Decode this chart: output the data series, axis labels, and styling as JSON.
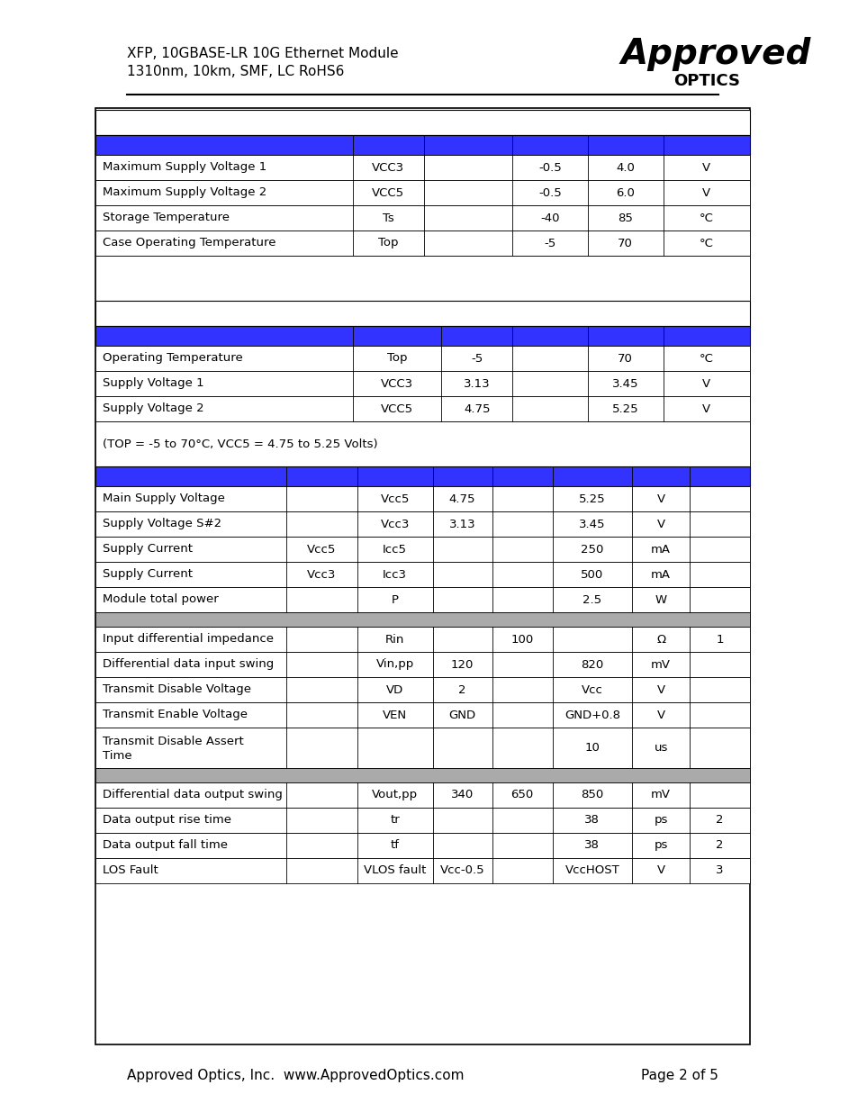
{
  "header_line1": "XFP, 10GBASE-LR 10G Ethernet Module",
  "header_line2": "1310nm, 10km, SMF, LC RoHS6",
  "footer_left": "Approved Optics, Inc.  www.ApprovedOptics.com",
  "footer_right": "Page 2 of 5",
  "blue_color": "#3333FF",
  "gray_color": "#AAAAAA",
  "white_color": "#FFFFFF",
  "black_color": "#000000",
  "section1_header_row": [
    "",
    "",
    "",
    "",
    "",
    ""
  ],
  "section1_rows": [
    [
      "Maximum Supply Voltage 1",
      "VCC3",
      "",
      "-0.5",
      "4.0",
      "V"
    ],
    [
      "Maximum Supply Voltage 2",
      "VCC5",
      "",
      "-0.5",
      "6.0",
      "V"
    ],
    [
      "Storage Temperature",
      "Ts",
      "",
      "-40",
      "85",
      "°C"
    ],
    [
      "Case Operating Temperature",
      "Top",
      "",
      "-5",
      "70",
      "°C"
    ]
  ],
  "section2_header_row": [
    "",
    "",
    "",
    "",
    "",
    ""
  ],
  "section2_rows": [
    [
      "Operating Temperature",
      "Top",
      "-5",
      "",
      "70",
      "°C"
    ],
    [
      "Supply Voltage 1",
      "VCC3",
      "3.13",
      "",
      "3.45",
      "V"
    ],
    [
      "Supply Voltage 2",
      "VCC5",
      "4.75",
      "",
      "5.25",
      "V"
    ]
  ],
  "section2_note": "(TOP = -5 to 70°C, VCC5 = 4.75 to 5.25 Volts)",
  "section3_header_row": [
    "",
    "",
    "",
    "",
    "",
    "",
    ""
  ],
  "section3_rows_a": [
    [
      "Main Supply Voltage",
      "",
      "Vcc5",
      "4.75",
      "",
      "5.25",
      "V",
      ""
    ],
    [
      "Supply Voltage S#2",
      "",
      "Vcc3",
      "3.13",
      "",
      "3.45",
      "V",
      ""
    ],
    [
      "Supply Current",
      "Vcc5",
      "Icc5",
      "",
      "",
      "250",
      "mA",
      ""
    ],
    [
      "Supply Current",
      "Vcc3",
      "Icc3",
      "",
      "",
      "500",
      "mA",
      ""
    ],
    [
      "Module total power",
      "",
      "P",
      "",
      "",
      "2.5",
      "W",
      ""
    ]
  ],
  "section3_rows_b": [
    [
      "Input differential impedance",
      "",
      "Rin",
      "",
      "100",
      "",
      "Ω",
      "1"
    ],
    [
      "Differential data input swing",
      "",
      "Vin,pp",
      "120",
      "",
      "820",
      "mV",
      ""
    ],
    [
      "Transmit Disable Voltage",
      "",
      "VD",
      "2",
      "",
      "Vcc",
      "V",
      ""
    ],
    [
      "Transmit Enable Voltage",
      "",
      "VEN",
      "GND",
      "",
      "GND+0.8",
      "V",
      ""
    ],
    [
      "Transmit Disable Assert Time",
      "",
      "",
      "",
      "",
      "10",
      "us",
      ""
    ]
  ],
  "section3_rows_c": [
    [
      "Differential data output swing",
      "",
      "Vout,pp",
      "340",
      "650",
      "850",
      "mV",
      ""
    ],
    [
      "Data output rise time",
      "",
      "tr",
      "",
      "",
      "38",
      "ps",
      "2"
    ],
    [
      "Data output fall time",
      "",
      "tf",
      "",
      "",
      "38",
      "ps",
      "2"
    ],
    [
      "LOS Fault",
      "",
      "VLOS fault",
      "Vcc-0.5",
      "",
      "VccHOST",
      "V",
      "3"
    ]
  ]
}
